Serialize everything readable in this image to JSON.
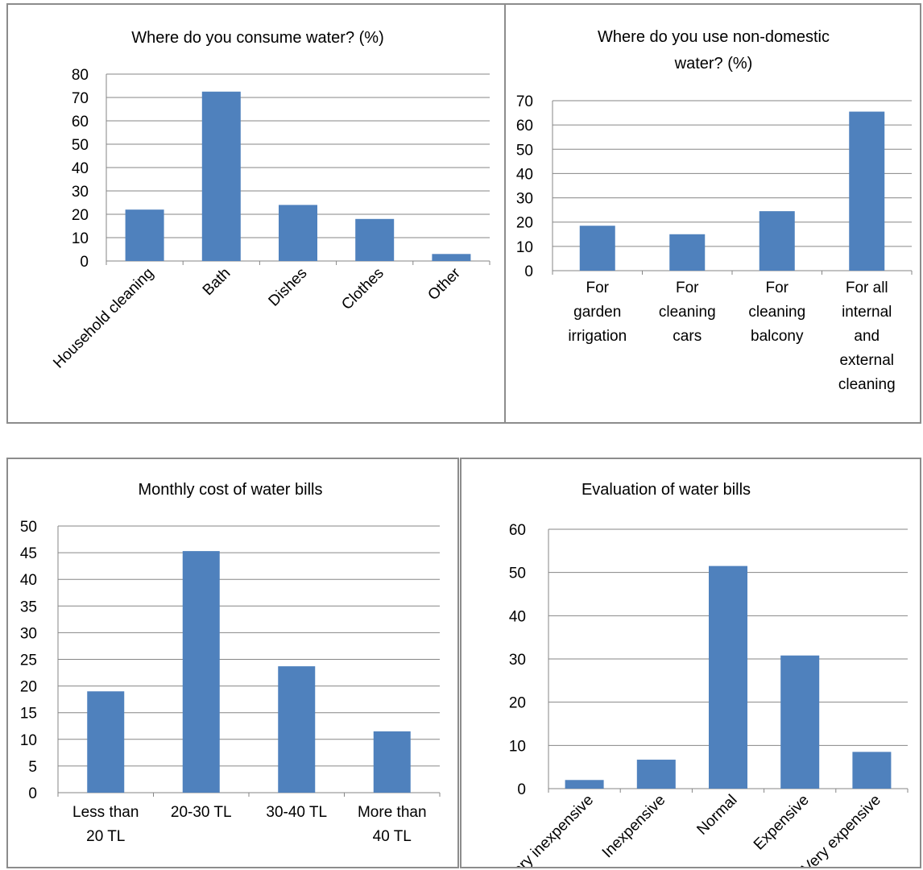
{
  "chart_data": [
    {
      "type": "bar",
      "title": "Where do you consume water? (%)",
      "categories": [
        "Household cleaning",
        "Bath",
        "Dishes",
        "Clothes",
        "Other"
      ],
      "values": [
        22,
        72.5,
        24,
        18,
        3
      ],
      "ylim": [
        0,
        80
      ],
      "yticks": [
        "0",
        "10",
        "20",
        "30",
        "40",
        "50",
        "60",
        "70",
        "80"
      ],
      "grid": true
    },
    {
      "type": "bar",
      "title": "Where do you use non-domestic water? (%)",
      "categories": [
        "For garden irrigation",
        "For cleaning cars",
        "For cleaning balcony",
        "For all internal and external cleaning"
      ],
      "values": [
        18.5,
        15,
        24.5,
        65.5
      ],
      "ylim": [
        0,
        70
      ],
      "yticks": [
        "0",
        "10",
        "20",
        "30",
        "40",
        "50",
        "60",
        "70"
      ],
      "grid": true
    },
    {
      "type": "bar",
      "title": "Monthly cost of water bills",
      "categories": [
        "Less than 20 TL",
        "20-30 TL",
        "30-40 TL",
        "More than 40 TL"
      ],
      "values": [
        19,
        45.3,
        23.7,
        11.5
      ],
      "ylim": [
        0,
        50
      ],
      "yticks": [
        "0",
        "5",
        "10",
        "15",
        "20",
        "25",
        "30",
        "35",
        "40",
        "45",
        "50"
      ],
      "grid": true
    },
    {
      "type": "bar",
      "title": "Evaluation of water bills",
      "categories": [
        "Very inexpensive",
        "Inexpensive",
        "Normal",
        "Expensive",
        "Very expensive"
      ],
      "values": [
        2,
        6.7,
        51.5,
        30.8,
        8.5
      ],
      "ylim": [
        0,
        60
      ],
      "yticks": [
        "0",
        "10",
        "20",
        "30",
        "40",
        "50",
        "60"
      ],
      "grid": true
    }
  ]
}
